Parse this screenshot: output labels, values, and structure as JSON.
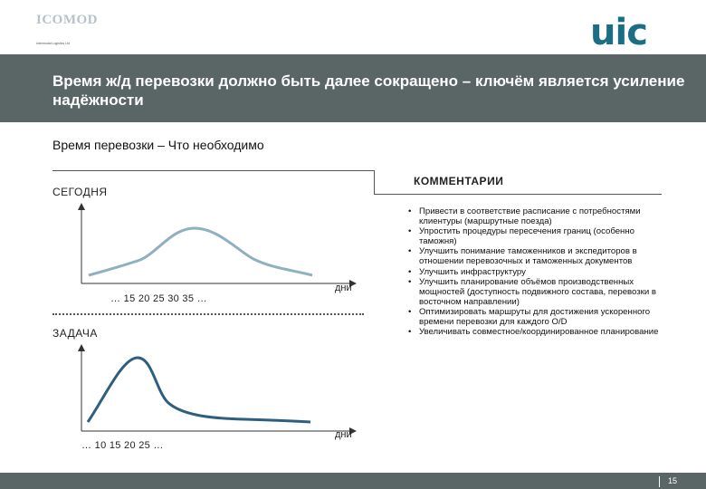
{
  "logos": {
    "left_name": "ICOMOD",
    "left_name2": "",
    "left_tagline": "Intermodal Logistics Ltd",
    "right_text": "uic"
  },
  "title": "Время ж/д перевозки должно быть далее сокращено – ключём является усиление надёжности",
  "subtitle": "Время перевозки – Что необходимо",
  "today": {
    "heading": "СЕГОДНЯ",
    "ticks": "…   15   20   25   30   35   …",
    "axis_unit": "дни"
  },
  "target": {
    "heading": "ЗАДАЧА",
    "ticks": "…    10   15   20   25     …",
    "axis_unit": "дни"
  },
  "comments": {
    "heading": "КОММЕНТАРИИ",
    "items": [
      "Привести в соответствие расписание с потребностями клиентуры (маршрутные поезда)",
      "Упростить процедуры пересечения границ (особенно таможня)",
      "Улучшить понимание таможенников и экспедиторов в отношении перевозочных и таможенных документов",
      "Улучшить инфраструктуру",
      "Улучшить планирование объёмов производственных мощностей (доступность подвижного состава, перевозки в восточном направлении)",
      "Оптимизировать маршруты для достижения ускоренного времени перевозки для каждого O/D",
      "Увеличивать совместное/координированное планирование"
    ],
    "bullet": "•"
  },
  "footer": {
    "page_number": "15"
  },
  "colors": {
    "title_bar": "#5a6565",
    "today_curve": "#8fb0be",
    "target_curve": "#2e5f7e"
  }
}
